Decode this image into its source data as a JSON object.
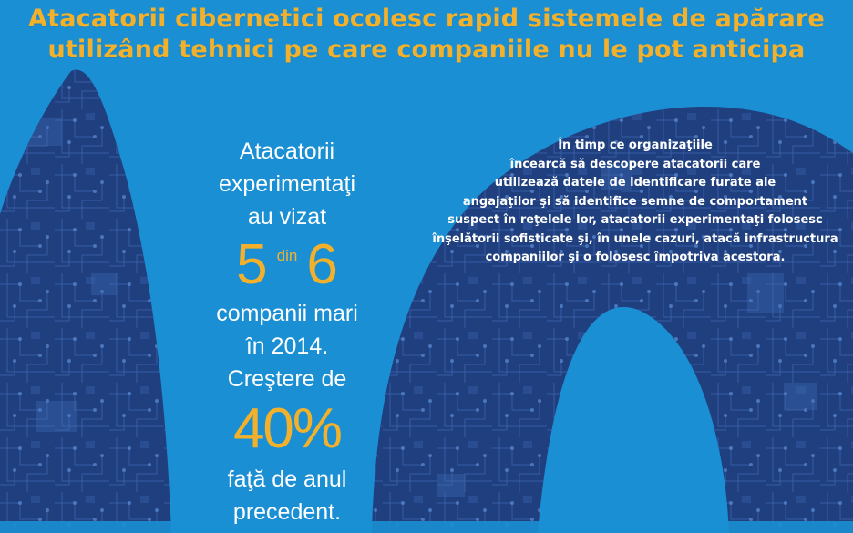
{
  "title": {
    "line1": "Atacatorii cibernetici ocolesc rapid sistemele de apărare",
    "line2": "utilizând tehnici pe care companiile nu le pot anticipa"
  },
  "left_panel": {
    "line1": "Atacatorii",
    "line2": "experimentaţi",
    "line3": "au vizat",
    "stat_num1": "5",
    "stat_din": "din",
    "stat_num2": "6",
    "line4": "companii mari",
    "line5": "în 2014.",
    "line6": "Creştere de",
    "stat_pct": "40%",
    "line7": "faţă de anul",
    "line8": "precedent."
  },
  "right_panel": {
    "lines": [
      "În timp ce organizaţiile",
      "încearcă să descopere atacatorii care",
      "utilizează datele de identificare furate ale",
      "angajaţilor şi să identifice semne de comportament",
      "suspect în reţelele lor, atacatorii experimentaţi folosesc",
      "înşelătorii sofisticate şi, în unele cazuri, atacă infrastructura",
      "companiilor şi o folosesc împotriva acestora."
    ]
  },
  "colors": {
    "background": "#1a8fd4",
    "dark_shape": "#1f3f7e",
    "circuit": "#4a78c4",
    "accent": "#f3b12b",
    "text": "#ffffff"
  }
}
